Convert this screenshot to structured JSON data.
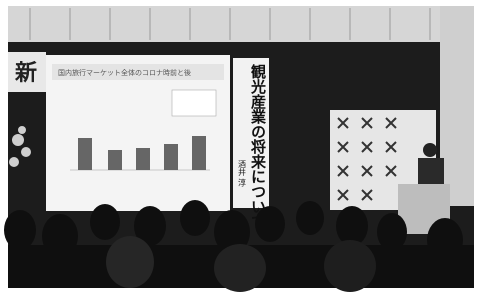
{
  "slide": {
    "title": "国内旅行マーケット全体のコロナ時前と後"
  },
  "banner": {
    "title": "観光産業の将来について",
    "speaker": "酒井 淳"
  },
  "left_sign": {
    "text": "新"
  }
}
